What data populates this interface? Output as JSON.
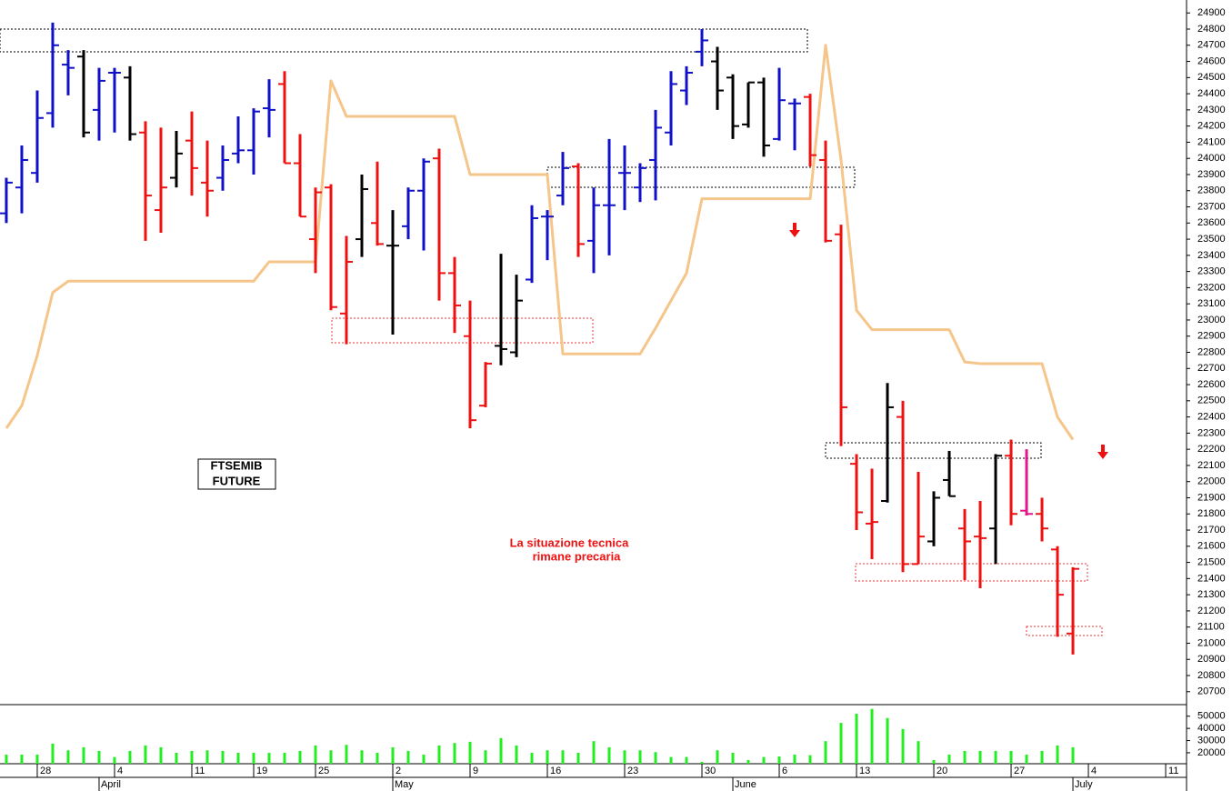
{
  "chart_data": {
    "type": "ohlc",
    "title_box": [
      "FTSEMIB",
      "FUTURE"
    ],
    "annotations": [
      "La situazione tecnica",
      "rimane precaria"
    ],
    "xlim": [
      -0.41,
      76.35
    ],
    "xticks": [
      {
        "value": 2,
        "label": "28"
      },
      {
        "value": 7,
        "label": "4"
      },
      {
        "value": 12,
        "label": "11"
      },
      {
        "value": 16,
        "label": "19"
      },
      {
        "value": 20,
        "label": "25"
      },
      {
        "value": 25,
        "label": "2"
      },
      {
        "value": 30,
        "label": "9"
      },
      {
        "value": 35,
        "label": "16"
      },
      {
        "value": 40,
        "label": "23"
      },
      {
        "value": 45,
        "label": "30"
      },
      {
        "value": 50,
        "label": "6"
      },
      {
        "value": 55,
        "label": "13"
      },
      {
        "value": 60,
        "label": "20"
      },
      {
        "value": 65,
        "label": "27"
      },
      {
        "value": 70,
        "label": "4"
      },
      {
        "value": 75,
        "label": "11"
      }
    ],
    "months": [
      {
        "value": 6,
        "label": "April"
      },
      {
        "value": 25,
        "label": "May"
      },
      {
        "value": 47,
        "label": "June"
      },
      {
        "value": 69,
        "label": "July"
      }
    ],
    "ylim": [
      20620,
      24980
    ],
    "yticks": [
      24900,
      24800,
      24700,
      24600,
      24500,
      24400,
      24300,
      24200,
      24100,
      24000,
      23900,
      23800,
      23700,
      23600,
      23500,
      23400,
      23300,
      23200,
      23100,
      23000,
      22900,
      22800,
      22700,
      22600,
      22500,
      22400,
      22300,
      22200,
      22100,
      22000,
      21900,
      21800,
      21700,
      21600,
      21500,
      21400,
      21300,
      21200,
      21100,
      21000,
      20900,
      20800,
      20700
    ],
    "open": [
      23660,
      23820,
      23910,
      24280,
      24580,
      24630,
      24300,
      24530,
      24500,
      24160,
      23680,
      23880,
      24110,
      23850,
      23880,
      24030,
      24050,
      24310,
      24460,
      23970,
      23500,
      23820,
      23040,
      23500,
      23600,
      23460,
      23580,
      23800,
      24000,
      23290,
      22900,
      22470,
      22840,
      22800,
      23250,
      23640,
      23770,
      23950,
      23490,
      23710,
      23910,
      23820,
      23990,
      24160,
      24420,
      24660,
      24600,
      24500,
      24210,
      24470,
      24120,
      24340,
      24380,
      23990,
      23530,
      22110,
      21740,
      21880,
      22400,
      21490,
      21630,
      22010,
      21710,
      21660,
      21710,
      22160,
      21820,
      21800,
      21580,
      21060
    ],
    "high": [
      23880,
      24080,
      24420,
      24840,
      24670,
      24670,
      24560,
      24560,
      24570,
      24230,
      24190,
      24170,
      24290,
      24110,
      24080,
      24260,
      24310,
      24490,
      24540,
      24150,
      23820,
      23840,
      23520,
      23900,
      23980,
      23680,
      23820,
      24000,
      24060,
      23390,
      23120,
      22740,
      23410,
      23280,
      23710,
      23680,
      24040,
      23970,
      23820,
      24120,
      24080,
      23970,
      24300,
      24540,
      24570,
      24800,
      24690,
      24520,
      24470,
      24500,
      24560,
      24370,
      24400,
      24110,
      23590,
      22170,
      22080,
      22610,
      22500,
      22060,
      21940,
      22190,
      21830,
      21880,
      22170,
      22260,
      22200,
      21900,
      21600,
      21470
    ],
    "low": [
      23600,
      23660,
      23850,
      24190,
      24390,
      24130,
      24110,
      24160,
      24110,
      23490,
      23540,
      23820,
      23770,
      23640,
      23800,
      23970,
      23900,
      24130,
      23970,
      23640,
      23290,
      23060,
      22850,
      23390,
      23460,
      22910,
      23500,
      23430,
      23120,
      22920,
      22330,
      22460,
      22720,
      22770,
      23230,
      23370,
      23710,
      23390,
      23290,
      23400,
      23680,
      23730,
      23740,
      24080,
      24330,
      24570,
      24300,
      24120,
      24190,
      24010,
      24110,
      24050,
      23950,
      23480,
      22220,
      21700,
      21520,
      21870,
      21440,
      21490,
      21600,
      21910,
      21390,
      21340,
      21490,
      21730,
      21790,
      21630,
      21040,
      20930
    ],
    "close": [
      23850,
      23990,
      24250,
      24700,
      24560,
      24160,
      24480,
      24530,
      24150,
      23770,
      23820,
      24030,
      23940,
      23800,
      23990,
      24050,
      24290,
      24300,
      23970,
      23640,
      23790,
      23080,
      23360,
      23810,
      23470,
      23460,
      23800,
      23980,
      23290,
      23090,
      22380,
      22730,
      22820,
      23120,
      23630,
      23640,
      23940,
      23470,
      23710,
      23710,
      23910,
      23940,
      24190,
      24460,
      24530,
      24730,
      24420,
      24200,
      24470,
      24080,
      24360,
      24340,
      24020,
      23490,
      22460,
      21810,
      21750,
      22460,
      21490,
      21660,
      21900,
      21910,
      21630,
      21650,
      22160,
      21800,
      21800,
      21710,
      21300,
      21460
    ],
    "colors": [
      "#1010c8",
      "#1010c8",
      "#1010c8",
      "#1010c8",
      "#1010c8",
      "#000000",
      "#1010c8",
      "#1010c8",
      "#000000",
      "#ee1111",
      "#ee1111",
      "#000000",
      "#ee1111",
      "#ee1111",
      "#1010c8",
      "#1010c8",
      "#1010c8",
      "#1010c8",
      "#ee1111",
      "#ee1111",
      "#ee1111",
      "#ee1111",
      "#ee1111",
      "#000000",
      "#ee1111",
      "#000000",
      "#1010c8",
      "#1010c8",
      "#ee1111",
      "#ee1111",
      "#ee1111",
      "#ee1111",
      "#000000",
      "#000000",
      "#1010c8",
      "#1010c8",
      "#1010c8",
      "#ee1111",
      "#1010c8",
      "#1010c8",
      "#1010c8",
      "#1010c8",
      "#1010c8",
      "#1010c8",
      "#1010c8",
      "#1010c8",
      "#000000",
      "#000000",
      "#000000",
      "#000000",
      "#1010c8",
      "#1010c8",
      "#ee1111",
      "#ee1111",
      "#ee1111",
      "#ee1111",
      "#ee1111",
      "#000000",
      "#ee1111",
      "#ee1111",
      "#000000",
      "#000000",
      "#ee1111",
      "#ee1111",
      "#000000",
      "#ee1111",
      "#e0188c",
      "#ee1111",
      "#ee1111",
      "#ee1111"
    ],
    "line": {
      "color": "#f5c58a",
      "values": [
        22330,
        22470,
        22780,
        23170,
        23240,
        23240,
        23240,
        23240,
        23240,
        23240,
        23240,
        23240,
        23240,
        23240,
        23240,
        23240,
        23240,
        23360,
        23360,
        23360,
        23360,
        24480,
        24260,
        24260,
        24260,
        24260,
        24260,
        24260,
        24260,
        24260,
        23900,
        23900,
        23900,
        23900,
        23900,
        23900,
        22790,
        22790,
        22790,
        22790,
        22790,
        22790,
        22950,
        23120,
        23290,
        23750,
        23750,
        23750,
        23750,
        23750,
        23750,
        23750,
        23750,
        24700,
        23990,
        23060,
        22940,
        22940,
        22940,
        22940,
        22940,
        22940,
        22740,
        22730,
        22730,
        22730,
        22730,
        22730,
        22400,
        22260
      ]
    },
    "volume": {
      "color": "#22ee22",
      "ylim": [
        11000,
        59500
      ],
      "yticks": [
        20000,
        30000,
        40000,
        50000
      ],
      "values": [
        18500,
        18500,
        18500,
        27500,
        22000,
        24500,
        21500,
        16500,
        21500,
        26000,
        24500,
        20000,
        21500,
        22000,
        21500,
        20000,
        20000,
        20000,
        20000,
        21500,
        26000,
        22000,
        26500,
        22000,
        20000,
        24500,
        21500,
        18500,
        26000,
        28000,
        29000,
        22000,
        32000,
        26000,
        20000,
        22000,
        22000,
        20000,
        29500,
        24500,
        22000,
        22000,
        20500,
        16500,
        16500,
        12500,
        22000,
        20000,
        14000,
        16500,
        17000,
        18500,
        18000,
        29500,
        44500,
        52000,
        56000,
        48500,
        39500,
        29500,
        14000,
        18500,
        21500,
        21500,
        21500,
        21500,
        18500,
        21500,
        26000,
        24500
      ]
    }
  }
}
